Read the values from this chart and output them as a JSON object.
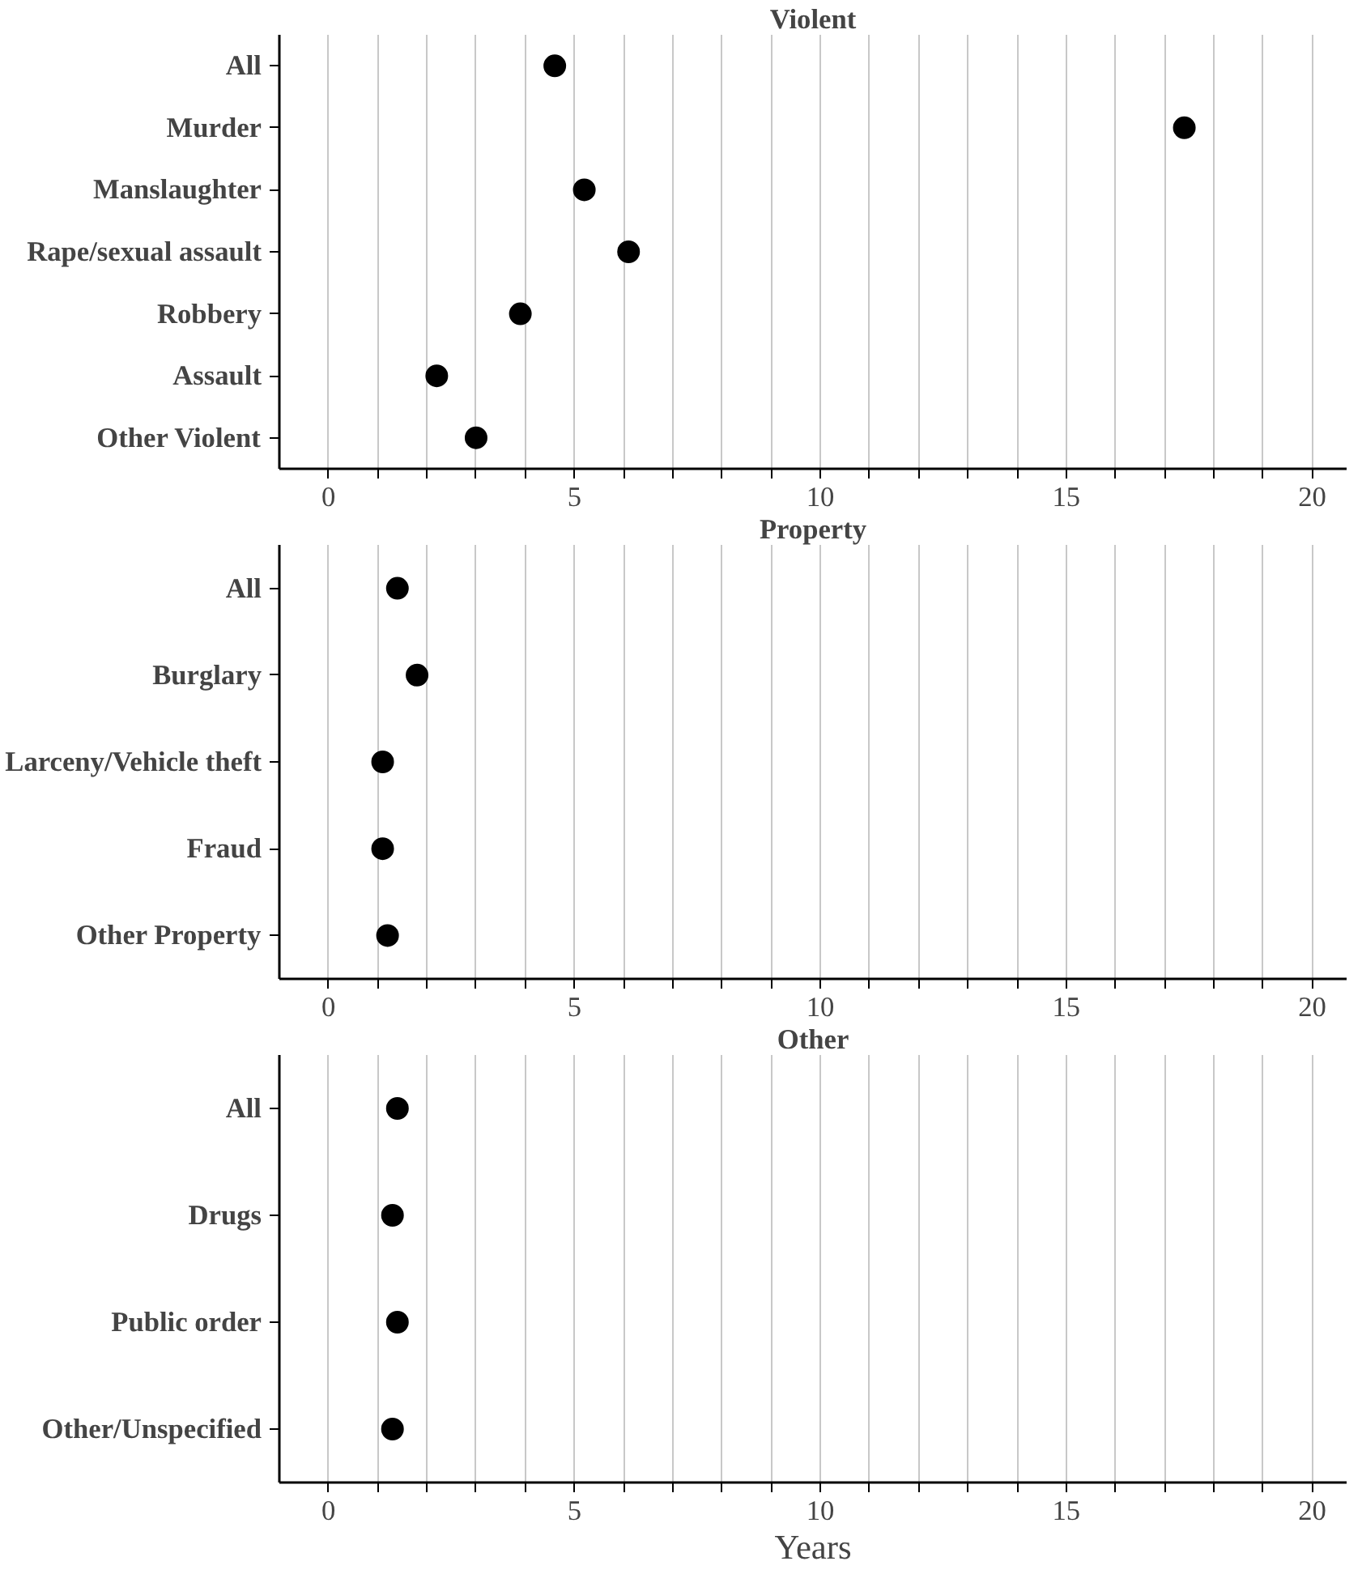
{
  "chart_data": [
    {
      "type": "scatter",
      "orientation": "horizontal",
      "title": "Violent",
      "categories": [
        "All",
        "Murder",
        "Manslaughter",
        "Rape/sexual assault",
        "Robbery",
        "Assault",
        "Other Violent"
      ],
      "series": [
        {
          "color": "#000000",
          "values": [
            4.6,
            17.4,
            5.2,
            6.1,
            3.9,
            2.2,
            3.0
          ]
        }
      ],
      "xlim": [
        -1,
        20.7
      ],
      "xticks": [
        0,
        {
          "value": 1,
          "label": null
        },
        {
          "value": 2,
          "label": null
        },
        {
          "value": 3,
          "label": null
        },
        {
          "value": 4,
          "label": null
        },
        5,
        {
          "value": 6,
          "label": null
        },
        {
          "value": 7,
          "label": null
        },
        {
          "value": 8,
          "label": null
        },
        {
          "value": 9,
          "label": null
        },
        10,
        {
          "value": 11,
          "label": null
        },
        {
          "value": 12,
          "label": null
        },
        {
          "value": 13,
          "label": null
        },
        {
          "value": 14,
          "label": null
        },
        15,
        {
          "value": 16,
          "label": null
        },
        {
          "value": 17,
          "label": null
        },
        {
          "value": 18,
          "label": null
        },
        {
          "value": 19,
          "label": null
        },
        20
      ],
      "grid": "x",
      "marker": "circle"
    },
    {
      "type": "scatter",
      "orientation": "horizontal",
      "title": "Property",
      "categories": [
        "All",
        "Burglary",
        "Larceny/Vehicle theft",
        "Fraud",
        "Other Property"
      ],
      "series": [
        {
          "color": "#000000",
          "values": [
            1.4,
            1.8,
            1.1,
            1.1,
            1.2
          ]
        }
      ],
      "xlim": [
        -1,
        20.7
      ],
      "xticks": [
        0,
        {
          "value": 1,
          "label": null
        },
        {
          "value": 2,
          "label": null
        },
        {
          "value": 3,
          "label": null
        },
        {
          "value": 4,
          "label": null
        },
        5,
        {
          "value": 6,
          "label": null
        },
        {
          "value": 7,
          "label": null
        },
        {
          "value": 8,
          "label": null
        },
        {
          "value": 9,
          "label": null
        },
        10,
        {
          "value": 11,
          "label": null
        },
        {
          "value": 12,
          "label": null
        },
        {
          "value": 13,
          "label": null
        },
        {
          "value": 14,
          "label": null
        },
        15,
        {
          "value": 16,
          "label": null
        },
        {
          "value": 17,
          "label": null
        },
        {
          "value": 18,
          "label": null
        },
        {
          "value": 19,
          "label": null
        },
        20
      ],
      "grid": "x",
      "marker": "circle"
    },
    {
      "type": "scatter",
      "orientation": "horizontal",
      "title": "Other",
      "xlabel": "Years",
      "categories": [
        "All",
        "Drugs",
        "Public order",
        "Other/Unspecified"
      ],
      "series": [
        {
          "color": "#000000",
          "values": [
            1.4,
            1.3,
            1.4,
            1.3
          ]
        }
      ],
      "xlim": [
        -1,
        20.7
      ],
      "xticks": [
        0,
        {
          "value": 1,
          "label": null
        },
        {
          "value": 2,
          "label": null
        },
        {
          "value": 3,
          "label": null
        },
        {
          "value": 4,
          "label": null
        },
        5,
        {
          "value": 6,
          "label": null
        },
        {
          "value": 7,
          "label": null
        },
        {
          "value": 8,
          "label": null
        },
        {
          "value": 9,
          "label": null
        },
        10,
        {
          "value": 11,
          "label": null
        },
        {
          "value": 12,
          "label": null
        },
        {
          "value": 13,
          "label": null
        },
        {
          "value": 14,
          "label": null
        },
        15,
        {
          "value": 16,
          "label": null
        },
        {
          "value": 17,
          "label": null
        },
        {
          "value": 18,
          "label": null
        },
        {
          "value": 19,
          "label": null
        },
        20
      ],
      "grid": "x",
      "marker": "circle"
    }
  ]
}
